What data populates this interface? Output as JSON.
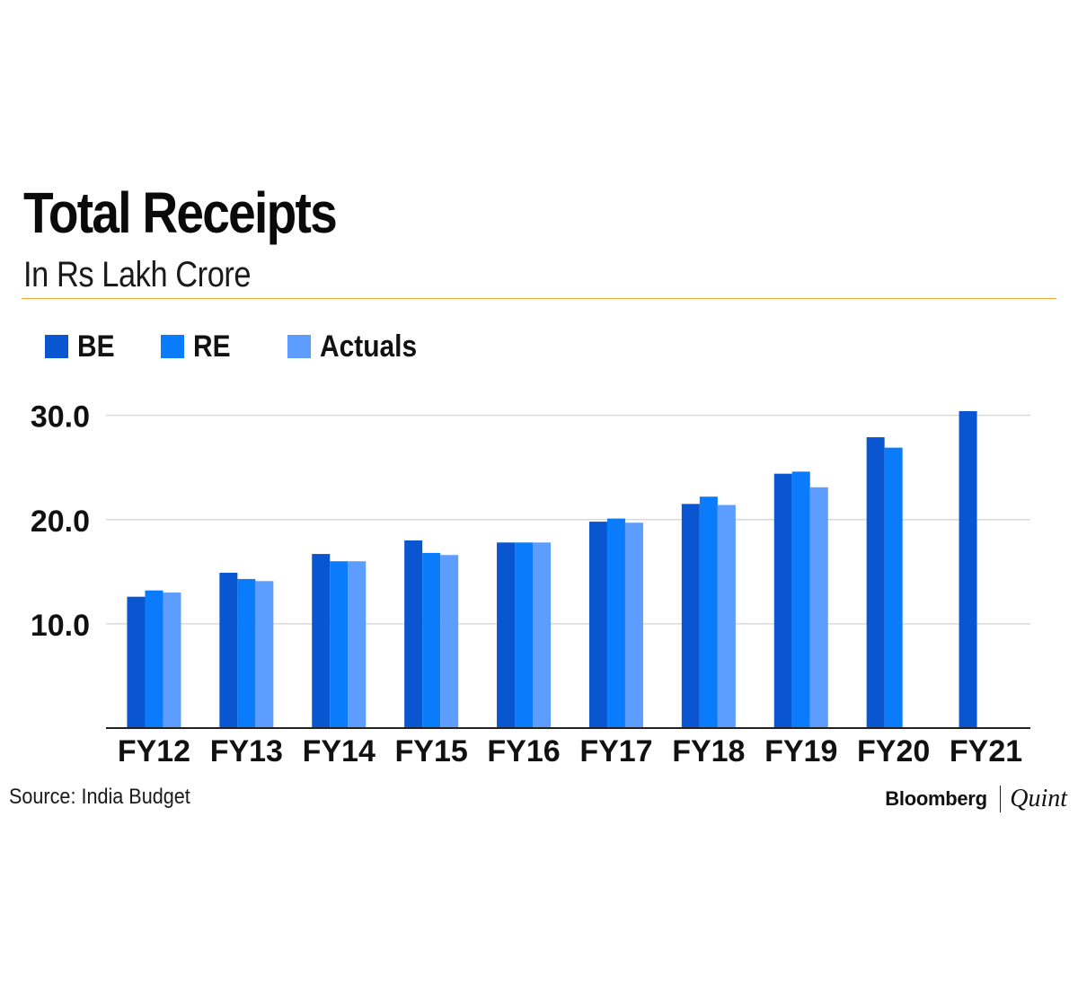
{
  "header": {
    "title": "Total Receipts",
    "subtitle": "In Rs Lakh Crore"
  },
  "colors": {
    "BE": "#0a55d0",
    "RE": "#0a7bfb",
    "Actuals": "#5c9dff",
    "rule": "#f0a63a"
  },
  "legend": [
    {
      "label": "BE",
      "color": "#0a55d0"
    },
    {
      "label": "RE",
      "color": "#0a7bfb"
    },
    {
      "label": "Actuals",
      "color": "#5c9dff"
    }
  ],
  "chart_data": {
    "type": "bar",
    "title": "Total Receipts",
    "subtitle": "In Rs Lakh Crore",
    "xlabel": "",
    "ylabel": "",
    "categories": [
      "FY12",
      "FY13",
      "FY14",
      "FY15",
      "FY16",
      "FY17",
      "FY18",
      "FY19",
      "FY20",
      "FY21"
    ],
    "series": [
      {
        "name": "BE",
        "values": [
          12.6,
          14.9,
          16.7,
          18.0,
          17.8,
          19.8,
          21.5,
          24.4,
          27.9,
          30.4
        ]
      },
      {
        "name": "RE",
        "values": [
          13.2,
          14.3,
          16.0,
          16.8,
          17.8,
          20.1,
          22.2,
          24.6,
          26.9,
          null
        ]
      },
      {
        "name": "Actuals",
        "values": [
          13.0,
          14.1,
          16.0,
          16.6,
          17.8,
          19.7,
          21.4,
          23.1,
          null,
          null
        ]
      }
    ],
    "ylim": [
      0,
      30.4
    ],
    "yticks": [
      "10.0",
      "20.0",
      "30.0"
    ],
    "ytick_values": [
      10,
      20,
      30
    ],
    "grid": true,
    "legend_position": "top-left"
  },
  "footer": {
    "source": "Source: India Budget",
    "brand_primary": "Bloomberg",
    "brand_secondary": "Quint"
  }
}
